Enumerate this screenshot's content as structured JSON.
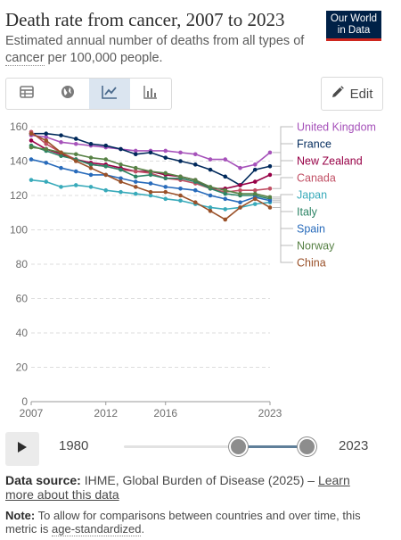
{
  "header": {
    "title": "Death rate from cancer, 2007 to 2023",
    "subtitle_before": "Estimated annual number of deaths from all types of ",
    "subtitle_link": "cancer",
    "subtitle_after": " per 100,000 people.",
    "logo_line1": "Our World",
    "logo_line2": "in Data"
  },
  "toolbar": {
    "tabs": [
      {
        "icon": "table-icon"
      },
      {
        "icon": "globe-icon"
      },
      {
        "icon": "line-chart-icon",
        "active": true
      },
      {
        "icon": "bar-chart-icon"
      }
    ],
    "edit_label": "Edit"
  },
  "timeline": {
    "start_label": "1980",
    "end_label": "2023"
  },
  "footer": {
    "source_bold": "Data source:",
    "source_text": " IHME, Global Burden of Disease (2025) – ",
    "source_link": "Learn more about this data",
    "note_bold": "Note:",
    "note_text": " To allow for comparisons between countries and over time, this metric is ",
    "note_link": "age-standardized",
    "note_end": "."
  },
  "chart_data": {
    "type": "line",
    "x": [
      2007,
      2008,
      2009,
      2010,
      2011,
      2012,
      2013,
      2014,
      2015,
      2016,
      2017,
      2018,
      2019,
      2020,
      2021,
      2022,
      2023
    ],
    "x_ticks": [
      2007,
      2012,
      2016,
      2023
    ],
    "y_ticks": [
      0,
      20,
      40,
      60,
      80,
      100,
      120,
      140,
      160
    ],
    "ylim": [
      0,
      160
    ],
    "grid": "horizontal dashed",
    "legend_position": "right, labels at line ends",
    "series": [
      {
        "name": "United Kingdom",
        "color": "#a652ba",
        "values": [
          155,
          154,
          151,
          150,
          149,
          148,
          147,
          146,
          146,
          146,
          145,
          144,
          141,
          141,
          136,
          138,
          145
        ]
      },
      {
        "name": "France",
        "color": "#00295b",
        "values": [
          156,
          156,
          155,
          153,
          150,
          149,
          147,
          144,
          145,
          142,
          140,
          138,
          135,
          131,
          126,
          135,
          137
        ]
      },
      {
        "name": "New Zealand",
        "color": "#970046",
        "values": [
          152,
          147,
          144,
          141,
          139,
          138,
          136,
          134,
          134,
          132,
          131,
          129,
          124,
          124,
          126,
          128,
          132
        ]
      },
      {
        "name": "Canada",
        "color": "#c15065",
        "values": [
          157,
          150,
          145,
          141,
          138,
          137,
          135,
          134,
          133,
          130,
          129,
          127,
          124,
          122,
          123,
          123,
          124
        ]
      },
      {
        "name": "Japan",
        "color": "#38aaba",
        "values": [
          129,
          128,
          125,
          126,
          125,
          123,
          122,
          121,
          120,
          118,
          117,
          115,
          113,
          112,
          113,
          115,
          116
        ]
      },
      {
        "name": "Italy",
        "color": "#2c8465",
        "values": [
          149,
          146,
          143,
          141,
          138,
          137,
          135,
          131,
          132,
          130,
          130,
          128,
          124,
          121,
          120,
          120,
          118
        ]
      },
      {
        "name": "Spain",
        "color": "#286bbb",
        "values": [
          141,
          139,
          136,
          134,
          132,
          132,
          130,
          128,
          127,
          125,
          124,
          123,
          120,
          118,
          116,
          119,
          117
        ]
      },
      {
        "name": "Norway",
        "color": "#578145",
        "values": [
          148,
          147,
          145,
          144,
          142,
          141,
          138,
          136,
          134,
          133,
          131,
          129,
          125,
          123,
          121,
          121,
          119
        ]
      },
      {
        "name": "China",
        "color": "#9a5129",
        "values": [
          156,
          152,
          145,
          140,
          136,
          132,
          128,
          125,
          122,
          122,
          120,
          116,
          111,
          106,
          113,
          118,
          113
        ]
      }
    ]
  }
}
